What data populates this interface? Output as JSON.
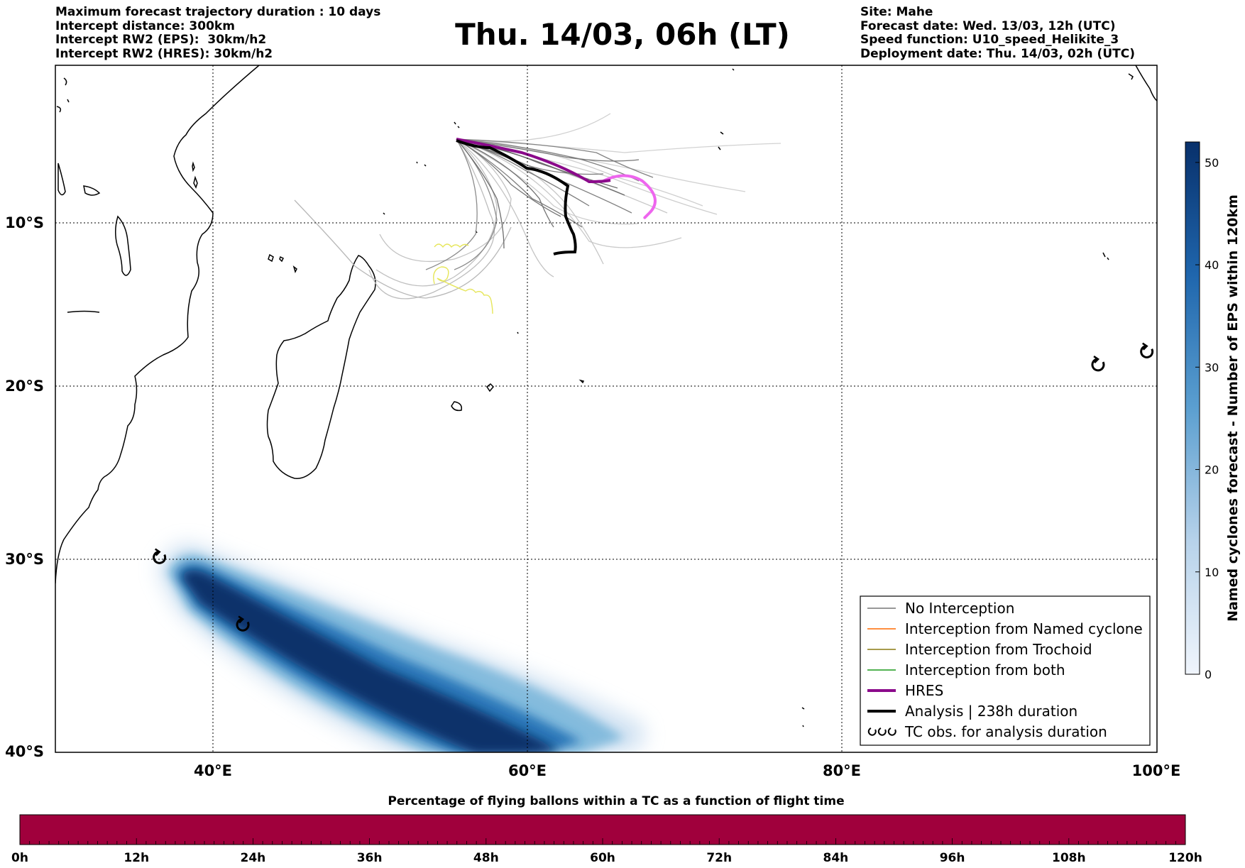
{
  "header_left": [
    "Maximum forecast trajectory duration : 10 days",
    "Intercept distance: 300km",
    "Intercept RW2 (EPS):  30km/h2",
    "Intercept RW2 (HRES): 30km/h2"
  ],
  "header_right": [
    "Site: Mahe",
    "Forecast date: Wed. 13/03, 12h (UTC)",
    "Speed function: U10_speed_Helikite_3",
    "Deployment date: Thu. 14/03, 02h (UTC)"
  ],
  "title": "Thu. 14/03, 06h (LT)",
  "map": {
    "lon_ticks": [
      "40°E",
      "60°E",
      "80°E",
      "100°E"
    ],
    "lat_ticks": [
      "10°S",
      "20°S",
      "30°S",
      "40°S"
    ],
    "lon_range": [
      30,
      100
    ],
    "lat_range": [
      -40,
      -1
    ],
    "grid": true,
    "colors": {
      "hres": "#8b0a8b",
      "hres_extension": "#ee66ee",
      "analysis": "#000000",
      "no_interception": "#707070",
      "trochoid": "#e6e65a"
    }
  },
  "colorbar_right": {
    "label": "Named cyclones forecast - Number of EPS within 120km",
    "ticks": [
      "0",
      "10",
      "20",
      "30",
      "40",
      "50"
    ],
    "range": [
      0,
      52
    ]
  },
  "legend": {
    "items": [
      {
        "label": "No Interception",
        "color": "#777777"
      },
      {
        "label": "Interception from Named cyclone",
        "color": "#ff6a00"
      },
      {
        "label": "Interception from Trochoid",
        "color": "#8a7a10"
      },
      {
        "label": "Interception from both",
        "color": "#1a9a1a"
      },
      {
        "label": "HRES",
        "color": "#8b0a8b"
      },
      {
        "label": "Analysis | 238h duration",
        "color": "#000000"
      },
      {
        "label": "TC obs. for analysis duration",
        "color": "#000000"
      }
    ]
  },
  "bottom_bar": {
    "title": "Percentage of flying ballons within a TC as a function of flight time",
    "ticks": [
      "0h",
      "12h",
      "24h",
      "36h",
      "48h",
      "60h",
      "72h",
      "84h",
      "96h",
      "108h",
      "120h"
    ],
    "color": "#a0003c"
  },
  "tc_obs": [
    {
      "lon": 36.6,
      "lat": -29.9
    },
    {
      "lon": 41.9,
      "lat": -33.4
    },
    {
      "lon": 96.3,
      "lat": -18.7
    },
    {
      "lon": 99.4,
      "lat": -17.9
    }
  ]
}
